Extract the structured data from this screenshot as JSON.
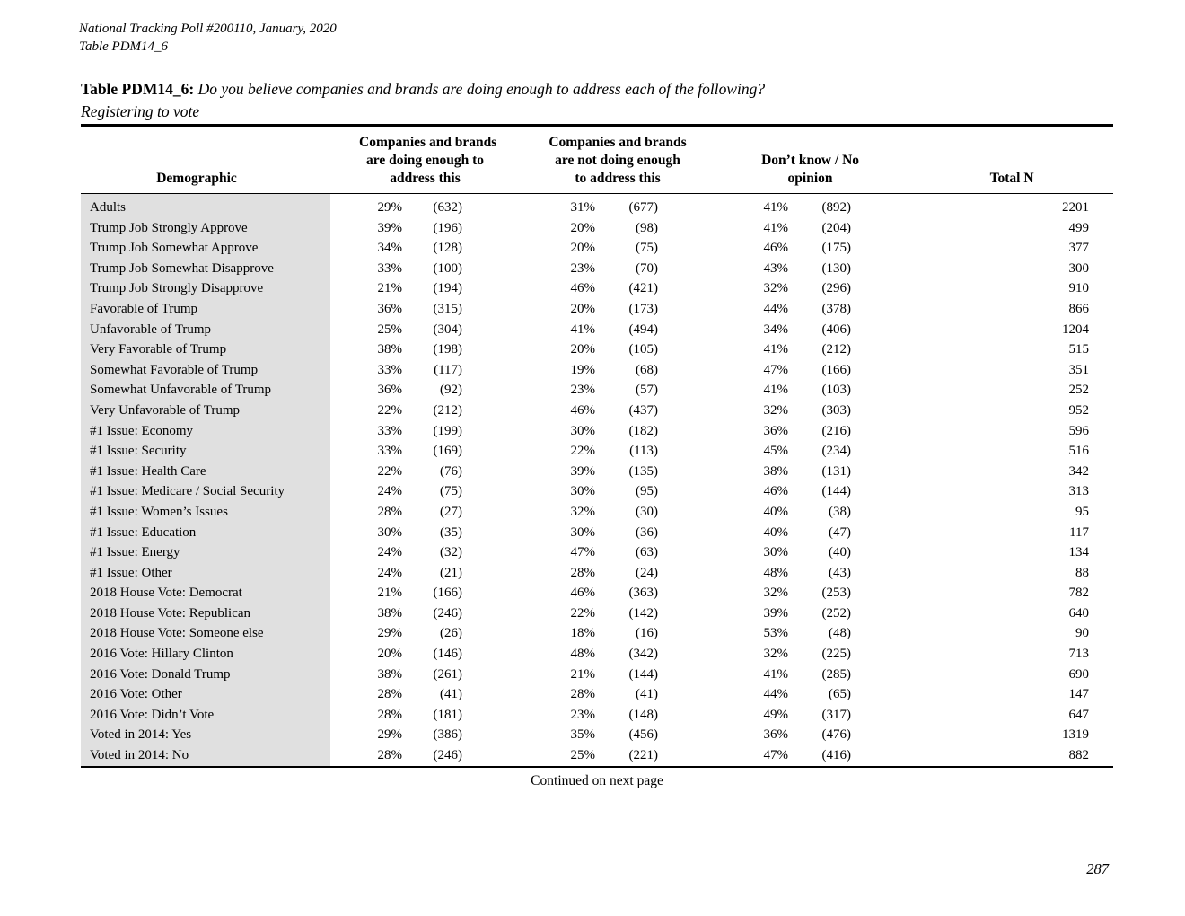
{
  "page": {
    "header_line1": "National Tracking Poll #200110, January, 2020",
    "header_line2": "Table PDM14_6",
    "title_label": "Table PDM14_6:",
    "title_question": "Do you believe companies and brands are doing enough to address each of the following?",
    "title_sub": "Registering to vote",
    "continued": "Continued on next page",
    "page_number": "287"
  },
  "colors": {
    "row_shading": "#e0e0e0",
    "rule": "#000000",
    "text": "#000000"
  },
  "table": {
    "columns": {
      "demographic": "Demographic",
      "col1_lines": [
        "Companies and brands",
        "are doing enough to",
        "address this"
      ],
      "col2_lines": [
        "Companies and brands",
        "are not doing enough",
        "to address this"
      ],
      "col3_lines": [
        "Don’t know / No",
        "opinion"
      ],
      "total": "Total N"
    },
    "rows": [
      {
        "demographic": "Adults",
        "pct1": "29%",
        "n1": "(632)",
        "pct2": "31%",
        "n2": "(677)",
        "pct3": "41%",
        "n3": "(892)",
        "total": "2201"
      },
      {
        "demographic": "Trump Job Strongly Approve",
        "pct1": "39%",
        "n1": "(196)",
        "pct2": "20%",
        "n2": "(98)",
        "pct3": "41%",
        "n3": "(204)",
        "total": "499"
      },
      {
        "demographic": "Trump Job Somewhat Approve",
        "pct1": "34%",
        "n1": "(128)",
        "pct2": "20%",
        "n2": "(75)",
        "pct3": "46%",
        "n3": "(175)",
        "total": "377"
      },
      {
        "demographic": "Trump Job Somewhat Disapprove",
        "pct1": "33%",
        "n1": "(100)",
        "pct2": "23%",
        "n2": "(70)",
        "pct3": "43%",
        "n3": "(130)",
        "total": "300"
      },
      {
        "demographic": "Trump Job Strongly Disapprove",
        "pct1": "21%",
        "n1": "(194)",
        "pct2": "46%",
        "n2": "(421)",
        "pct3": "32%",
        "n3": "(296)",
        "total": "910"
      },
      {
        "demographic": "Favorable of Trump",
        "pct1": "36%",
        "n1": "(315)",
        "pct2": "20%",
        "n2": "(173)",
        "pct3": "44%",
        "n3": "(378)",
        "total": "866"
      },
      {
        "demographic": "Unfavorable of Trump",
        "pct1": "25%",
        "n1": "(304)",
        "pct2": "41%",
        "n2": "(494)",
        "pct3": "34%",
        "n3": "(406)",
        "total": "1204"
      },
      {
        "demographic": "Very Favorable of Trump",
        "pct1": "38%",
        "n1": "(198)",
        "pct2": "20%",
        "n2": "(105)",
        "pct3": "41%",
        "n3": "(212)",
        "total": "515"
      },
      {
        "demographic": "Somewhat Favorable of Trump",
        "pct1": "33%",
        "n1": "(117)",
        "pct2": "19%",
        "n2": "(68)",
        "pct3": "47%",
        "n3": "(166)",
        "total": "351"
      },
      {
        "demographic": "Somewhat Unfavorable of Trump",
        "pct1": "36%",
        "n1": "(92)",
        "pct2": "23%",
        "n2": "(57)",
        "pct3": "41%",
        "n3": "(103)",
        "total": "252"
      },
      {
        "demographic": "Very Unfavorable of Trump",
        "pct1": "22%",
        "n1": "(212)",
        "pct2": "46%",
        "n2": "(437)",
        "pct3": "32%",
        "n3": "(303)",
        "total": "952"
      },
      {
        "demographic": "#1 Issue: Economy",
        "pct1": "33%",
        "n1": "(199)",
        "pct2": "30%",
        "n2": "(182)",
        "pct3": "36%",
        "n3": "(216)",
        "total": "596"
      },
      {
        "demographic": "#1 Issue: Security",
        "pct1": "33%",
        "n1": "(169)",
        "pct2": "22%",
        "n2": "(113)",
        "pct3": "45%",
        "n3": "(234)",
        "total": "516"
      },
      {
        "demographic": "#1 Issue: Health Care",
        "pct1": "22%",
        "n1": "(76)",
        "pct2": "39%",
        "n2": "(135)",
        "pct3": "38%",
        "n3": "(131)",
        "total": "342"
      },
      {
        "demographic": "#1 Issue: Medicare / Social Security",
        "pct1": "24%",
        "n1": "(75)",
        "pct2": "30%",
        "n2": "(95)",
        "pct3": "46%",
        "n3": "(144)",
        "total": "313"
      },
      {
        "demographic": "#1 Issue: Women’s Issues",
        "pct1": "28%",
        "n1": "(27)",
        "pct2": "32%",
        "n2": "(30)",
        "pct3": "40%",
        "n3": "(38)",
        "total": "95"
      },
      {
        "demographic": "#1 Issue: Education",
        "pct1": "30%",
        "n1": "(35)",
        "pct2": "30%",
        "n2": "(36)",
        "pct3": "40%",
        "n3": "(47)",
        "total": "117"
      },
      {
        "demographic": "#1 Issue: Energy",
        "pct1": "24%",
        "n1": "(32)",
        "pct2": "47%",
        "n2": "(63)",
        "pct3": "30%",
        "n3": "(40)",
        "total": "134"
      },
      {
        "demographic": "#1 Issue: Other",
        "pct1": "24%",
        "n1": "(21)",
        "pct2": "28%",
        "n2": "(24)",
        "pct3": "48%",
        "n3": "(43)",
        "total": "88"
      },
      {
        "demographic": "2018 House Vote: Democrat",
        "pct1": "21%",
        "n1": "(166)",
        "pct2": "46%",
        "n2": "(363)",
        "pct3": "32%",
        "n3": "(253)",
        "total": "782"
      },
      {
        "demographic": "2018 House Vote: Republican",
        "pct1": "38%",
        "n1": "(246)",
        "pct2": "22%",
        "n2": "(142)",
        "pct3": "39%",
        "n3": "(252)",
        "total": "640"
      },
      {
        "demographic": "2018 House Vote: Someone else",
        "pct1": "29%",
        "n1": "(26)",
        "pct2": "18%",
        "n2": "(16)",
        "pct3": "53%",
        "n3": "(48)",
        "total": "90"
      },
      {
        "demographic": "2016 Vote: Hillary Clinton",
        "pct1": "20%",
        "n1": "(146)",
        "pct2": "48%",
        "n2": "(342)",
        "pct3": "32%",
        "n3": "(225)",
        "total": "713"
      },
      {
        "demographic": "2016 Vote: Donald Trump",
        "pct1": "38%",
        "n1": "(261)",
        "pct2": "21%",
        "n2": "(144)",
        "pct3": "41%",
        "n3": "(285)",
        "total": "690"
      },
      {
        "demographic": "2016 Vote: Other",
        "pct1": "28%",
        "n1": "(41)",
        "pct2": "28%",
        "n2": "(41)",
        "pct3": "44%",
        "n3": "(65)",
        "total": "147"
      },
      {
        "demographic": "2016 Vote: Didn’t Vote",
        "pct1": "28%",
        "n1": "(181)",
        "pct2": "23%",
        "n2": "(148)",
        "pct3": "49%",
        "n3": "(317)",
        "total": "647"
      },
      {
        "demographic": "Voted in 2014: Yes",
        "pct1": "29%",
        "n1": "(386)",
        "pct2": "35%",
        "n2": "(456)",
        "pct3": "36%",
        "n3": "(476)",
        "total": "1319"
      },
      {
        "demographic": "Voted in 2014: No",
        "pct1": "28%",
        "n1": "(246)",
        "pct2": "25%",
        "n2": "(221)",
        "pct3": "47%",
        "n3": "(416)",
        "total": "882"
      }
    ]
  }
}
